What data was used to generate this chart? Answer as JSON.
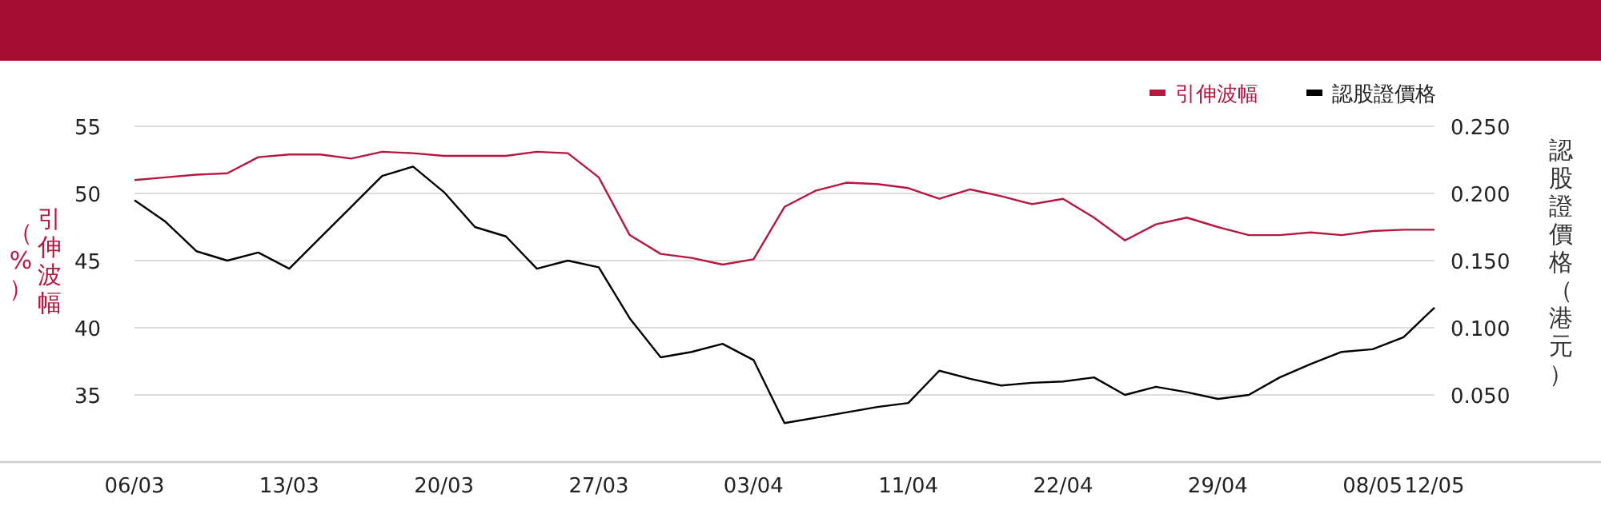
{
  "chart_data": {
    "type": "line",
    "categories": [
      "06/03",
      null,
      null,
      null,
      null,
      "13/03",
      null,
      null,
      null,
      null,
      "20/03",
      null,
      null,
      null,
      null,
      "27/03",
      null,
      null,
      null,
      null,
      "03/04",
      null,
      null,
      null,
      null,
      "11/04",
      null,
      null,
      null,
      null,
      "22/04",
      null,
      null,
      null,
      null,
      "29/04",
      null,
      null,
      null,
      null,
      "08/05",
      null,
      "12/05"
    ],
    "series": [
      {
        "name": "引伸波幅",
        "color": "#b5173f",
        "values": [
          51.0,
          51.2,
          51.4,
          51.5,
          52.7,
          52.9,
          52.9,
          52.6,
          53.1,
          53.0,
          52.8,
          52.8,
          52.8,
          53.1,
          53.0,
          51.2,
          46.9,
          45.5,
          45.2,
          44.7,
          45.1,
          49.0,
          50.2,
          50.8,
          50.7,
          50.4,
          49.6,
          50.3,
          49.8,
          49.2,
          49.6,
          48.2,
          46.5,
          47.7,
          48.2,
          47.5,
          46.9,
          46.9,
          47.1,
          46.9,
          47.2,
          47.3,
          47.3
        ]
      },
      {
        "name": "認股證價格",
        "color": "#000000",
        "axis": "y2",
        "values": [
          0.195,
          0.179,
          0.157,
          0.15,
          0.156,
          0.144,
          0.167,
          0.19,
          0.213,
          0.22,
          0.201,
          0.175,
          0.168,
          0.144,
          0.15,
          0.145,
          0.107,
          0.078,
          0.082,
          0.088,
          0.076,
          0.029,
          0.033,
          0.037,
          0.041,
          0.044,
          0.068,
          0.062,
          0.057,
          0.059,
          0.06,
          0.063,
          0.05,
          0.056,
          0.052,
          0.047,
          0.05,
          0.063,
          0.073,
          0.082,
          0.084,
          0.093,
          0.115
        ]
      }
    ],
    "ylabel": "引伸波幅（%）",
    "y2label": "認股證價格（港元）",
    "ylim": [
      30,
      55
    ],
    "yticks": [
      35,
      40,
      45,
      50,
      55
    ],
    "y2lim": [
      0,
      0.25
    ],
    "y2ticks": [
      {
        "value": 0.05,
        "label": "0.050"
      },
      {
        "value": 0.1,
        "label": "0.100"
      },
      {
        "value": 0.15,
        "label": "0.150"
      },
      {
        "value": 0.2,
        "label": "0.200"
      },
      {
        "value": 0.25,
        "label": "0.250"
      }
    ],
    "grid": "y",
    "legend": "top right",
    "marker": "none",
    "line_style": "solid"
  }
}
